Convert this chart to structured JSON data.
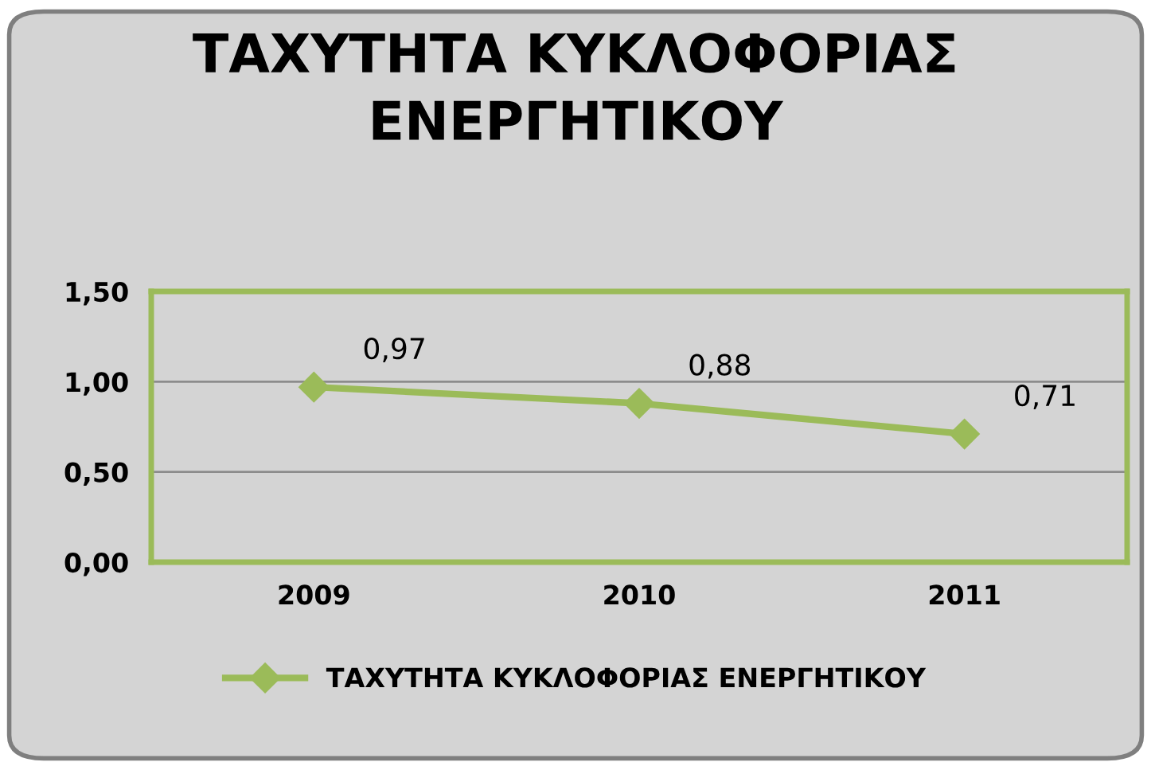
{
  "chart_data": {
    "type": "line",
    "title": "ΤΑΧΥΤΗΤΑ ΚΥΚΛΟΦΟΡΙΑΣ\nΕΝΕΡΓΗΤΙΚΟΥ",
    "categories": [
      "2009",
      "2010",
      "2011"
    ],
    "series": [
      {
        "name": "ΤΑΧΥΤΗΤΑ ΚΥΚΛΟΦΟΡΙΑΣ ΕΝΕΡΓΗΤΙΚΟΥ",
        "color": "#9bbb59",
        "values": [
          0.97,
          0.88,
          0.71
        ],
        "value_labels": [
          "0,97",
          "0,88",
          "0,71"
        ]
      }
    ],
    "ylim": [
      0,
      1.5
    ],
    "yticks": [
      {
        "value": 0,
        "label": "0,00"
      },
      {
        "value": 0.5,
        "label": "0,50"
      },
      {
        "value": 1.0,
        "label": "1,00"
      },
      {
        "value": 1.5,
        "label": "1,50"
      }
    ],
    "grid": "y",
    "legend": "bottom",
    "marker": "diamond",
    "line_style": "solid"
  }
}
